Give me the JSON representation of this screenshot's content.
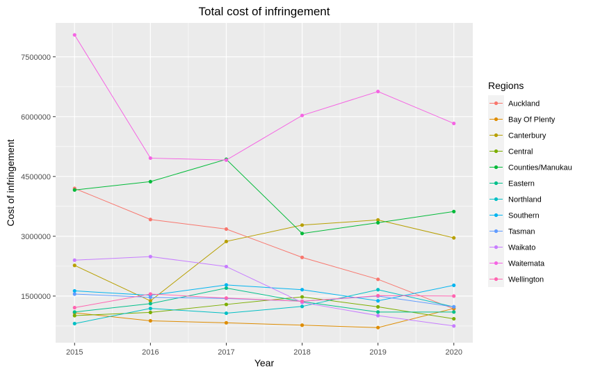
{
  "chart_data": {
    "type": "line",
    "title": "Total cost of infringement",
    "xlabel": "Year",
    "ylabel": "Cost of infringement",
    "x": [
      2015,
      2016,
      2017,
      2018,
      2019,
      2020
    ],
    "x_ticks": [
      "2015",
      "2016",
      "2017",
      "2018",
      "2019",
      "2020"
    ],
    "y_ticks": [
      1500000,
      3000000,
      4500000,
      6000000,
      7500000
    ],
    "y_tick_labels": [
      "1500000",
      "3000000",
      "4500000",
      "6000000",
      "7500000"
    ],
    "xlim": [
      2014.75,
      2020.25
    ],
    "ylim": [
      330000,
      8350000
    ],
    "grid": true,
    "panel_background": "#ebebeb",
    "legend": {
      "title": "Regions",
      "placement": "right"
    },
    "series": [
      {
        "name": "Auckland",
        "color": "#F8766D",
        "values": [
          4200000,
          3420000,
          3180000,
          2470000,
          1920000,
          1180000
        ]
      },
      {
        "name": "Bay Of Plenty",
        "color": "#DE8C00",
        "values": [
          1080000,
          880000,
          830000,
          770000,
          710000,
          1190000
        ]
      },
      {
        "name": "Canterbury",
        "color": "#B79F00",
        "values": [
          2270000,
          1380000,
          2870000,
          3280000,
          3410000,
          2960000
        ]
      },
      {
        "name": "Central",
        "color": "#7CAE00",
        "values": [
          1010000,
          1090000,
          1290000,
          1480000,
          1230000,
          930000
        ]
      },
      {
        "name": "Counties/Manukau",
        "color": "#00BA38",
        "values": [
          4160000,
          4370000,
          4930000,
          3070000,
          3340000,
          3620000
        ]
      },
      {
        "name": "Eastern",
        "color": "#00C08B",
        "values": [
          1100000,
          1310000,
          1700000,
          1360000,
          1100000,
          1100000
        ]
      },
      {
        "name": "Northland",
        "color": "#00BFC4",
        "values": [
          810000,
          1190000,
          1070000,
          1240000,
          1660000,
          1230000
        ]
      },
      {
        "name": "Southern",
        "color": "#00B4F0",
        "values": [
          1630000,
          1520000,
          1780000,
          1660000,
          1380000,
          1770000
        ]
      },
      {
        "name": "Tasman",
        "color": "#619CFF",
        "values": [
          1550000,
          1470000,
          1440000,
          1370000,
          1500000,
          1230000
        ]
      },
      {
        "name": "Waikato",
        "color": "#C77CFF",
        "values": [
          2400000,
          2490000,
          2240000,
          1340000,
          1010000,
          750000
        ]
      },
      {
        "name": "Waitemata",
        "color": "#F564E3",
        "values": [
          8050000,
          4960000,
          4910000,
          6030000,
          6630000,
          5830000
        ]
      },
      {
        "name": "Wellington",
        "color": "#FF64B0",
        "values": [
          1210000,
          1550000,
          1450000,
          1370000,
          1510000,
          1500000
        ]
      }
    ]
  }
}
